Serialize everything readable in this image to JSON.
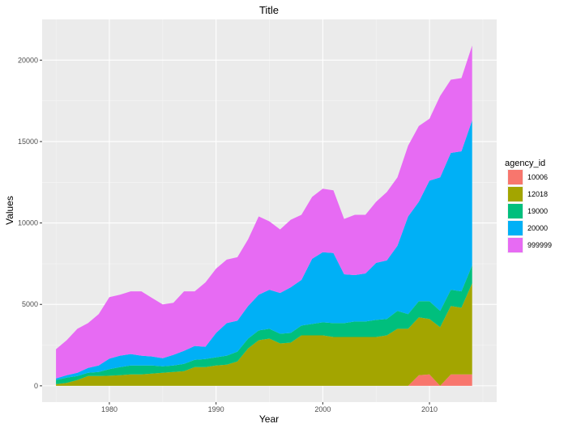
{
  "chart_data": {
    "type": "area",
    "stacked": true,
    "title": "Title",
    "xlabel": "Year",
    "ylabel": "Values",
    "xlim": [
      1973.7,
      2016.3
    ],
    "ylim": [
      -1000,
      22500
    ],
    "xticks": [
      1980,
      1990,
      2000,
      2010
    ],
    "yticks": [
      0,
      5000,
      10000,
      15000,
      20000
    ],
    "grid": true,
    "legend": {
      "title": "agency_id",
      "position": "right"
    },
    "x": [
      1975,
      1976,
      1977,
      1978,
      1979,
      1980,
      1981,
      1982,
      1983,
      1984,
      1985,
      1986,
      1987,
      1988,
      1989,
      1990,
      1991,
      1992,
      1993,
      1994,
      1995,
      1996,
      1997,
      1998,
      1999,
      2000,
      2001,
      2002,
      2003,
      2004,
      2005,
      2006,
      2007,
      2008,
      2009,
      2010,
      2011,
      2012,
      2013,
      2014
    ],
    "series": [
      {
        "name": "10006",
        "color": "#F8766D",
        "values": [
          0,
          0,
          0,
          0,
          0,
          0,
          0,
          0,
          0,
          0,
          0,
          0,
          0,
          0,
          0,
          0,
          0,
          0,
          0,
          0,
          0,
          0,
          0,
          0,
          0,
          0,
          0,
          0,
          0,
          0,
          0,
          0,
          0,
          0,
          650,
          700,
          0,
          700,
          700,
          700
        ]
      },
      {
        "name": "12018",
        "color": "#A3A500",
        "values": [
          100,
          180,
          350,
          600,
          600,
          620,
          650,
          700,
          700,
          750,
          800,
          850,
          900,
          1150,
          1150,
          1250,
          1300,
          1500,
          2300,
          2800,
          2900,
          2600,
          2650,
          3100,
          3100,
          3100,
          3000,
          3000,
          3000,
          3000,
          3000,
          3100,
          3500,
          3500,
          3550,
          3400,
          3600,
          4200,
          4100,
          5600
        ]
      },
      {
        "name": "19000",
        "color": "#00BF7D",
        "values": [
          250,
          320,
          250,
          200,
          250,
          400,
          500,
          550,
          550,
          500,
          400,
          400,
          450,
          450,
          500,
          500,
          550,
          600,
          600,
          600,
          600,
          600,
          600,
          600,
          700,
          800,
          850,
          850,
          950,
          950,
          1050,
          1000,
          1100,
          900,
          1000,
          1100,
          1000,
          1000,
          1000,
          1100
        ]
      },
      {
        "name": "20000",
        "color": "#00B0F6",
        "values": [
          100,
          150,
          200,
          300,
          400,
          650,
          700,
          700,
          600,
          550,
          500,
          650,
          800,
          850,
          750,
          1500,
          2000,
          1900,
          2000,
          2200,
          2400,
          2500,
          2800,
          2800,
          4000,
          4300,
          4300,
          3000,
          2850,
          2950,
          3500,
          3600,
          4000,
          6000,
          6100,
          7400,
          8200,
          8400,
          8600,
          8900
        ]
      },
      {
        "name": "999999",
        "color": "#E76BF3",
        "values": [
          1800,
          2150,
          2700,
          2750,
          3150,
          3780,
          3750,
          3850,
          3950,
          3600,
          3300,
          3200,
          3650,
          3350,
          3950,
          3950,
          3900,
          3900,
          4100,
          4800,
          4200,
          3900,
          4150,
          4000,
          3800,
          3900,
          3850,
          3400,
          3700,
          3600,
          3750,
          4200,
          4200,
          4350,
          4650,
          3800,
          5000,
          4500,
          4500,
          4600
        ]
      }
    ]
  }
}
